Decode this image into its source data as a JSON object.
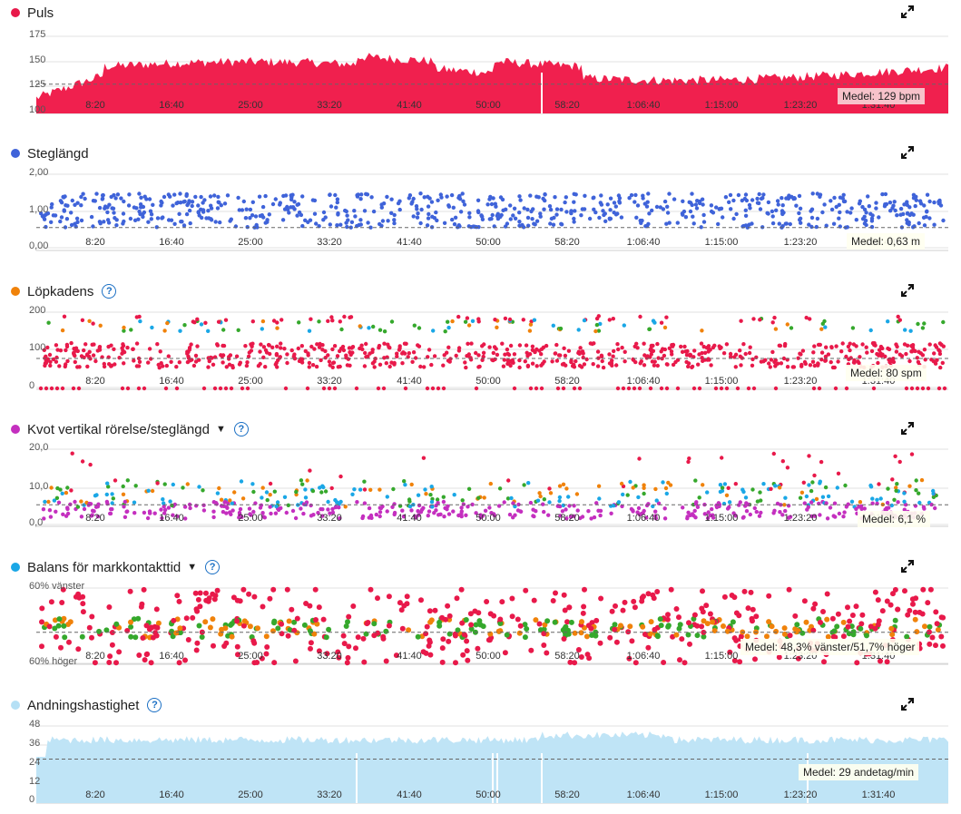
{
  "panels": [
    {
      "key": "puls",
      "title": "Puls",
      "dot_color": "#e8194a",
      "help": false,
      "caret": false,
      "y_labels": [
        "175",
        "150",
        "125",
        "100"
      ],
      "average": "Medel: 129 bpm"
    },
    {
      "key": "steg",
      "title": "Steglängd",
      "dot_color": "#3f63d9",
      "help": false,
      "caret": false,
      "y_labels": [
        "2,00",
        "1,00",
        "0,00"
      ],
      "average": "Medel: 0,63 m"
    },
    {
      "key": "kadens",
      "title": "Löpkadens",
      "dot_color": "#f0820a",
      "help": true,
      "caret": false,
      "y_labels": [
        "200",
        "100",
        "0"
      ],
      "average": "Medel: 80 spm"
    },
    {
      "key": "kvot",
      "title": "Kvot vertikal rörelse/steglängd",
      "dot_color": "#c42fbf",
      "help": true,
      "caret": true,
      "y_labels": [
        "20,0",
        "10,0",
        "0,0"
      ],
      "average": "Medel: 6,1 %"
    },
    {
      "key": "balans",
      "title": "Balans för markkontakttid",
      "dot_color": "#1aa7e6",
      "help": true,
      "caret": true,
      "y_labels": [
        "60% vänster",
        "60% höger"
      ],
      "average": "Medel: 48,3% vänster/51,7% höger"
    },
    {
      "key": "andning",
      "title": "Andningshastighet",
      "dot_color": "#b5e0f5",
      "help": true,
      "caret": false,
      "y_labels": [
        "48",
        "36",
        "24",
        "12",
        "0"
      ],
      "average": "Medel: 29 andetag/min"
    }
  ],
  "x_labels": [
    "8:20",
    "16:40",
    "25:00",
    "33:20",
    "41:40",
    "50:00",
    "58:20",
    "1:06:40",
    "1:15:00",
    "1:23:20",
    "1:31:40"
  ],
  "icons": {
    "expand": "expand-icon",
    "help": "help-icon",
    "caret": "caret-down-icon"
  },
  "chart_data": [
    {
      "type": "area",
      "title": "Puls",
      "ylim": [
        100,
        175
      ],
      "average": 129,
      "unit": "bpm",
      "color": "#f0204e"
    },
    {
      "type": "scatter",
      "title": "Steglängd",
      "ylim": [
        0,
        2
      ],
      "average": 0.63,
      "unit": "m",
      "color": "#3f63d9"
    },
    {
      "type": "scatter",
      "title": "Löpkadens",
      "ylim": [
        0,
        200
      ],
      "average": 80,
      "unit": "spm",
      "color": "#e8194a"
    },
    {
      "type": "scatter",
      "title": "Kvot vertikal rörelse/steglängd",
      "ylim": [
        0,
        20
      ],
      "average": 6.1,
      "unit": "%"
    },
    {
      "type": "scatter",
      "title": "Balans för markkontakttid",
      "average_left": 48.3,
      "average_right": 51.7
    },
    {
      "type": "area",
      "title": "Andningshastighet",
      "ylim": [
        0,
        48
      ],
      "average": 29,
      "unit": "andetag/min",
      "color": "#bfe4f6"
    }
  ]
}
